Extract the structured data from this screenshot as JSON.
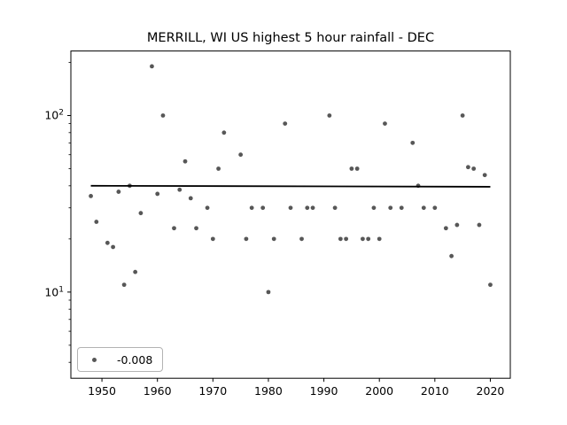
{
  "figure": {
    "title": "MERRILL, WI US highest 5 hour rainfall - DEC",
    "legend": {
      "label": "-0.008",
      "marker": "gray-dot-marker"
    }
  },
  "chart_data": {
    "type": "scatter",
    "title": "MERRILL, WI US highest 5 hour rainfall - DEC",
    "xlabel": "",
    "ylabel": "",
    "y_scale": "log",
    "grid": false,
    "legend_position": "lower-left",
    "xlim": [
      1944.4,
      2023.6
    ],
    "ylim": [
      3.25,
      232
    ],
    "x_ticks": [
      1950,
      1960,
      1970,
      1980,
      1990,
      2000,
      2010,
      2020
    ],
    "y_major_ticks": [
      {
        "value": 10,
        "label": "10",
        "exponent": "1"
      },
      {
        "value": 100,
        "label": "10",
        "exponent": "2"
      }
    ],
    "y_minor_ticks": [
      4,
      5,
      6,
      7,
      8,
      9,
      20,
      30,
      40,
      50,
      60,
      70,
      80,
      90,
      200
    ],
    "series": [
      {
        "name": "highest 5 hour rainfall",
        "marker": "circle",
        "marker_color": "#575757",
        "points": [
          [
            1948,
            35
          ],
          [
            1949,
            25
          ],
          [
            1951,
            19
          ],
          [
            1952,
            18
          ],
          [
            1953,
            37
          ],
          [
            1954,
            11
          ],
          [
            1955,
            40
          ],
          [
            1956,
            13
          ],
          [
            1957,
            28
          ],
          [
            1959,
            190
          ],
          [
            1960,
            36
          ],
          [
            1961,
            100
          ],
          [
            1963,
            23
          ],
          [
            1964,
            38
          ],
          [
            1965,
            55
          ],
          [
            1966,
            34
          ],
          [
            1967,
            23
          ],
          [
            1969,
            30
          ],
          [
            1970,
            20
          ],
          [
            1971,
            50
          ],
          [
            1972,
            80
          ],
          [
            1975,
            60
          ],
          [
            1976,
            20
          ],
          [
            1977,
            30
          ],
          [
            1979,
            30
          ],
          [
            1980,
            10
          ],
          [
            1981,
            20
          ],
          [
            1983,
            90
          ],
          [
            1984,
            30
          ],
          [
            1986,
            20
          ],
          [
            1987,
            30
          ],
          [
            1988,
            30
          ],
          [
            1991,
            100
          ],
          [
            1992,
            30
          ],
          [
            1993,
            20
          ],
          [
            1994,
            20
          ],
          [
            1995,
            50
          ],
          [
            1996,
            50
          ],
          [
            1997,
            20
          ],
          [
            1998,
            20
          ],
          [
            1999,
            30
          ],
          [
            2000,
            20
          ],
          [
            2001,
            90
          ],
          [
            2002,
            30
          ],
          [
            2004,
            30
          ],
          [
            2006,
            70
          ],
          [
            2007,
            40
          ],
          [
            2008,
            30
          ],
          [
            2010,
            30
          ],
          [
            2012,
            23
          ],
          [
            2013,
            16
          ],
          [
            2014,
            24
          ],
          [
            2015,
            100
          ],
          [
            2016,
            51
          ],
          [
            2017,
            50
          ],
          [
            2018,
            24
          ],
          [
            2019,
            46
          ],
          [
            2020,
            11
          ]
        ]
      }
    ],
    "trend_line": {
      "label": "-0.008",
      "color": "#000000",
      "start": [
        1948,
        40.0
      ],
      "end": [
        2020,
        39.5
      ]
    }
  }
}
